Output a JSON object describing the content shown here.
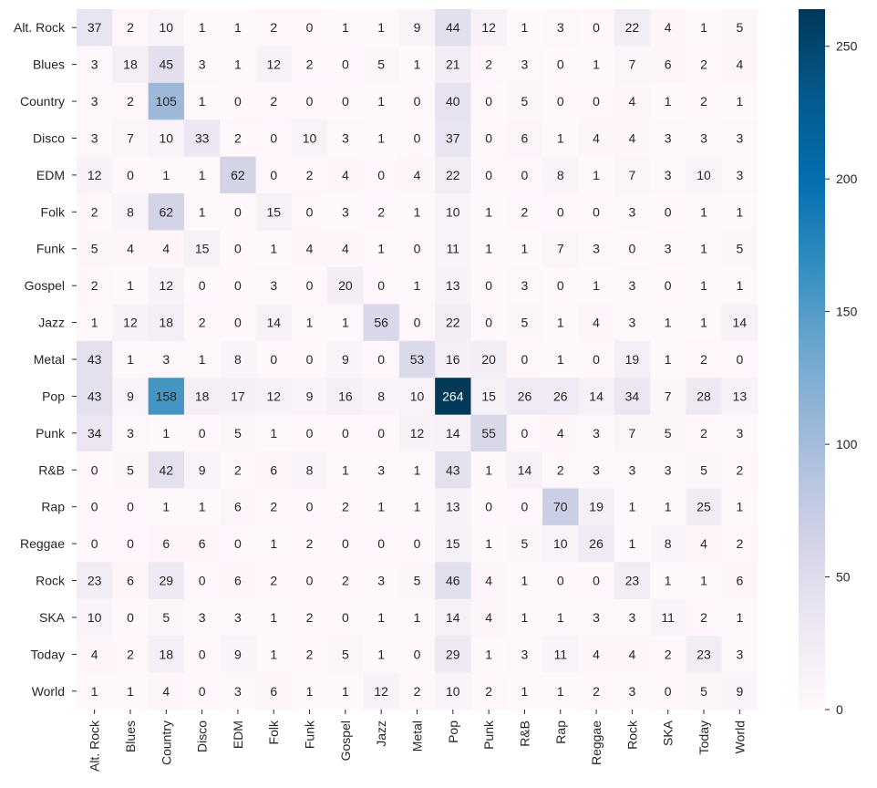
{
  "chart_data": {
    "type": "heatmap",
    "title": "",
    "xlabel": "",
    "ylabel": "",
    "colormap": "PuBu",
    "colormap_stops": [
      "#fff7fb",
      "#ece7f2",
      "#d0d1e6",
      "#a6bddb",
      "#74a9cf",
      "#3690c0",
      "#0570b0",
      "#045a8d",
      "#023858"
    ],
    "vmin": 0,
    "vmax": 264,
    "colorbar_ticks": [
      0,
      50,
      100,
      150,
      200,
      250
    ],
    "annotation_dark_text_threshold": 132,
    "row_labels": [
      "Alt. Rock",
      "Blues",
      "Country",
      "Disco",
      "EDM",
      "Folk",
      "Funk",
      "Gospel",
      "Jazz",
      "Metal",
      "Pop",
      "Punk",
      "R&B",
      "Rap",
      "Reggae",
      "Rock",
      "SKA",
      "Today",
      "World"
    ],
    "col_labels": [
      "Alt. Rock",
      "Blues",
      "Country",
      "Disco",
      "EDM",
      "Folk",
      "Funk",
      "Gospel",
      "Jazz",
      "Metal",
      "Pop",
      "Punk",
      "R&B",
      "Rap",
      "Reggae",
      "Rock",
      "SKA",
      "Today",
      "World"
    ],
    "values": [
      [
        37,
        2,
        10,
        1,
        1,
        2,
        0,
        1,
        1,
        9,
        44,
        12,
        1,
        3,
        0,
        22,
        4,
        1,
        5
      ],
      [
        3,
        18,
        45,
        3,
        1,
        12,
        2,
        0,
        5,
        1,
        21,
        2,
        3,
        0,
        1,
        7,
        6,
        2,
        4
      ],
      [
        3,
        2,
        105,
        1,
        0,
        2,
        0,
        0,
        1,
        0,
        40,
        0,
        5,
        0,
        0,
        4,
        1,
        2,
        1
      ],
      [
        3,
        7,
        10,
        33,
        2,
        0,
        10,
        3,
        1,
        0,
        37,
        0,
        6,
        1,
        4,
        4,
        3,
        3,
        3
      ],
      [
        12,
        0,
        1,
        1,
        62,
        0,
        2,
        4,
        0,
        4,
        22,
        0,
        0,
        8,
        1,
        7,
        3,
        10,
        3
      ],
      [
        2,
        8,
        62,
        1,
        0,
        15,
        0,
        3,
        2,
        1,
        10,
        1,
        2,
        0,
        0,
        3,
        0,
        1,
        1
      ],
      [
        5,
        4,
        4,
        15,
        0,
        1,
        4,
        4,
        1,
        0,
        11,
        1,
        1,
        7,
        3,
        0,
        3,
        1,
        5
      ],
      [
        2,
        1,
        12,
        0,
        0,
        3,
        0,
        20,
        0,
        1,
        13,
        0,
        3,
        0,
        1,
        3,
        0,
        1,
        1
      ],
      [
        1,
        12,
        18,
        2,
        0,
        14,
        1,
        1,
        56,
        0,
        22,
        0,
        5,
        1,
        4,
        3,
        1,
        1,
        14
      ],
      [
        43,
        1,
        3,
        1,
        8,
        0,
        0,
        9,
        0,
        53,
        16,
        20,
        0,
        1,
        0,
        19,
        1,
        2,
        0
      ],
      [
        43,
        9,
        158,
        18,
        17,
        12,
        9,
        16,
        8,
        10,
        264,
        15,
        26,
        26,
        14,
        34,
        7,
        28,
        13
      ],
      [
        34,
        3,
        1,
        0,
        5,
        1,
        0,
        0,
        0,
        12,
        14,
        55,
        0,
        4,
        3,
        7,
        5,
        2,
        3
      ],
      [
        0,
        5,
        42,
        9,
        2,
        6,
        8,
        1,
        3,
        1,
        43,
        1,
        14,
        2,
        3,
        3,
        3,
        5,
        2
      ],
      [
        0,
        0,
        1,
        1,
        6,
        2,
        0,
        2,
        1,
        1,
        13,
        0,
        0,
        70,
        19,
        1,
        1,
        25,
        1
      ],
      [
        0,
        0,
        6,
        6,
        0,
        1,
        2,
        0,
        0,
        0,
        15,
        1,
        5,
        10,
        26,
        1,
        8,
        4,
        2
      ],
      [
        23,
        6,
        29,
        0,
        6,
        2,
        0,
        2,
        3,
        5,
        46,
        4,
        1,
        0,
        0,
        23,
        1,
        1,
        6
      ],
      [
        10,
        0,
        5,
        3,
        3,
        1,
        2,
        0,
        1,
        1,
        14,
        4,
        1,
        1,
        3,
        3,
        11,
        2,
        1
      ],
      [
        4,
        2,
        18,
        0,
        9,
        1,
        2,
        5,
        1,
        0,
        29,
        1,
        3,
        11,
        4,
        4,
        2,
        23,
        3
      ],
      [
        1,
        1,
        4,
        0,
        3,
        6,
        1,
        1,
        12,
        2,
        10,
        2,
        1,
        1,
        2,
        3,
        0,
        5,
        9
      ]
    ]
  }
}
